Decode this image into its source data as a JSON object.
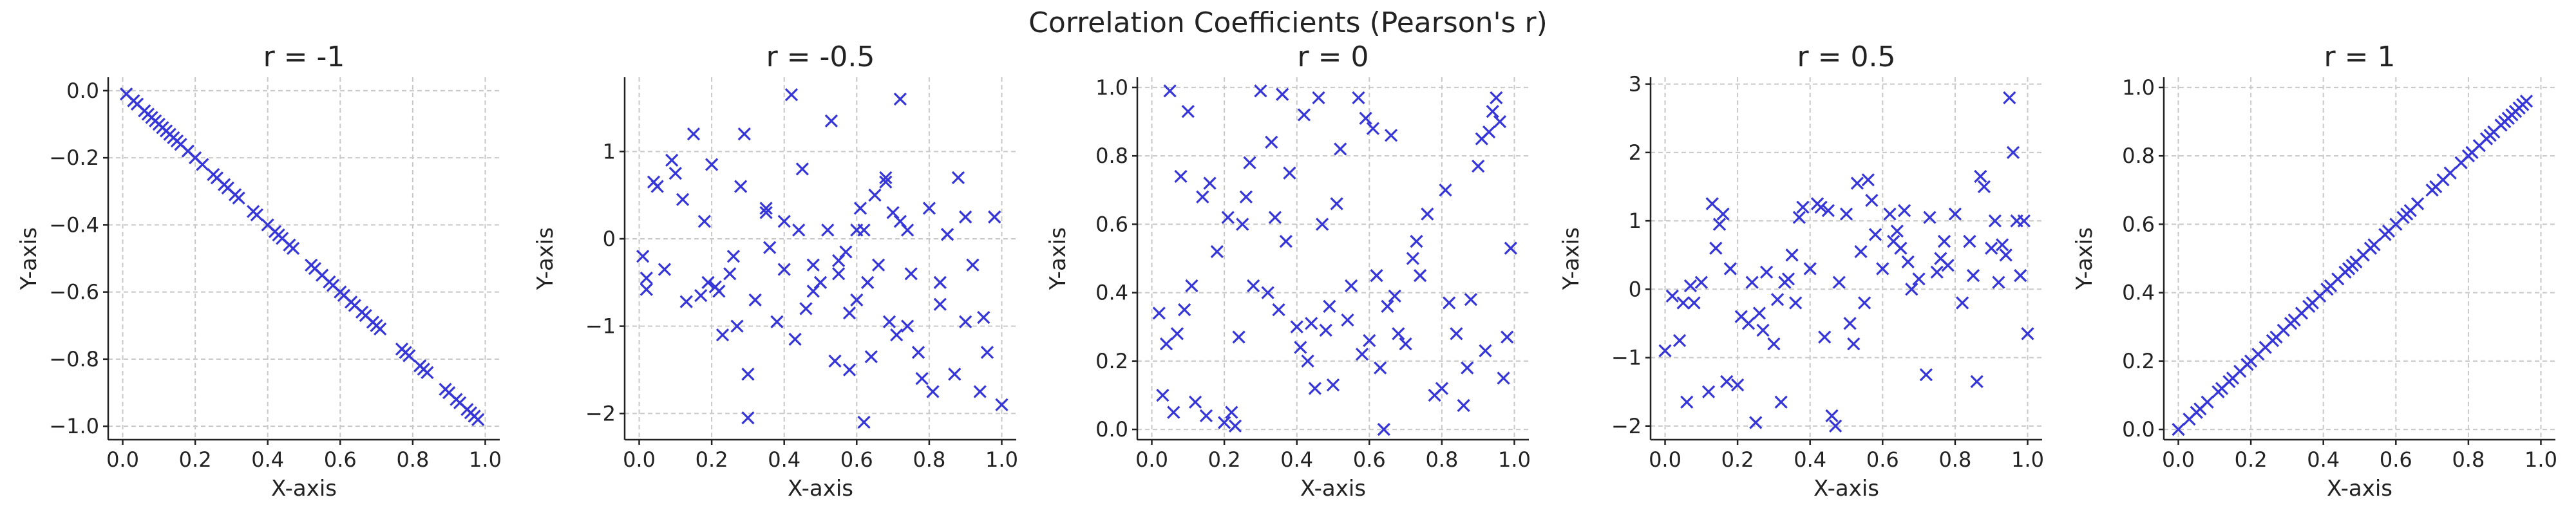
{
  "figure_title": "Correlation Coefficients (Pearson's r)",
  "colors": {
    "marker": "#3535d8",
    "grid": "#c8c8c8",
    "axis": "#222222"
  },
  "chart_data": [
    {
      "type": "scatter",
      "title": "r = -1",
      "xlabel": "X-axis",
      "ylabel": "Y-axis",
      "xlim": [
        -0.04,
        1.04
      ],
      "ylim": [
        -1.04,
        0.04
      ],
      "xticks": [
        0.0,
        0.2,
        0.4,
        0.6,
        0.8,
        1.0
      ],
      "xtick_labels": [
        "0.0",
        "0.2",
        "0.4",
        "0.6",
        "0.8",
        "1.0"
      ],
      "yticks": [
        0.0,
        -0.2,
        -0.4,
        -0.6,
        -0.8,
        -1.0
      ],
      "ytick_labels": [
        "0.0",
        "−0.2",
        "−0.4",
        "−0.6",
        "−0.8",
        "−1.0"
      ],
      "grid": true,
      "marker": "x",
      "x": [
        0.01,
        0.03,
        0.04,
        0.06,
        0.07,
        0.08,
        0.09,
        0.1,
        0.11,
        0.12,
        0.13,
        0.14,
        0.15,
        0.16,
        0.18,
        0.2,
        0.22,
        0.25,
        0.26,
        0.28,
        0.29,
        0.31,
        0.32,
        0.36,
        0.37,
        0.4,
        0.42,
        0.43,
        0.44,
        0.46,
        0.47,
        0.52,
        0.53,
        0.55,
        0.57,
        0.58,
        0.6,
        0.61,
        0.63,
        0.64,
        0.66,
        0.67,
        0.69,
        0.7,
        0.71,
        0.77,
        0.78,
        0.79,
        0.82,
        0.83,
        0.84,
        0.89,
        0.9,
        0.92,
        0.93,
        0.95,
        0.96,
        0.97,
        0.98
      ],
      "y": [
        -0.01,
        -0.03,
        -0.04,
        -0.06,
        -0.07,
        -0.08,
        -0.09,
        -0.1,
        -0.11,
        -0.12,
        -0.13,
        -0.14,
        -0.15,
        -0.16,
        -0.18,
        -0.2,
        -0.22,
        -0.25,
        -0.26,
        -0.28,
        -0.29,
        -0.31,
        -0.32,
        -0.36,
        -0.37,
        -0.4,
        -0.42,
        -0.43,
        -0.44,
        -0.46,
        -0.47,
        -0.52,
        -0.53,
        -0.55,
        -0.57,
        -0.58,
        -0.6,
        -0.61,
        -0.63,
        -0.64,
        -0.66,
        -0.67,
        -0.69,
        -0.7,
        -0.71,
        -0.77,
        -0.78,
        -0.79,
        -0.82,
        -0.83,
        -0.84,
        -0.89,
        -0.9,
        -0.92,
        -0.93,
        -0.95,
        -0.96,
        -0.97,
        -0.98
      ]
    },
    {
      "type": "scatter",
      "title": "r = -0.5",
      "xlabel": "X-axis",
      "ylabel": "Y-axis",
      "xlim": [
        -0.04,
        1.04
      ],
      "ylim": [
        -2.3,
        1.85
      ],
      "xticks": [
        0.0,
        0.2,
        0.4,
        0.6,
        0.8,
        1.0
      ],
      "xtick_labels": [
        "0.0",
        "0.2",
        "0.4",
        "0.6",
        "0.8",
        "1.0"
      ],
      "yticks": [
        1,
        0,
        -1,
        -2
      ],
      "ytick_labels": [
        "1",
        "0",
        "−1",
        "−2"
      ],
      "grid": true,
      "marker": "x",
      "x": [
        0.01,
        0.02,
        0.02,
        0.04,
        0.05,
        0.07,
        0.09,
        0.1,
        0.13,
        0.15,
        0.17,
        0.18,
        0.19,
        0.2,
        0.21,
        0.22,
        0.23,
        0.25,
        0.27,
        0.28,
        0.29,
        0.3,
        0.32,
        0.35,
        0.36,
        0.38,
        0.4,
        0.42,
        0.43,
        0.44,
        0.46,
        0.48,
        0.5,
        0.52,
        0.53,
        0.54,
        0.55,
        0.57,
        0.58,
        0.58,
        0.6,
        0.61,
        0.62,
        0.63,
        0.64,
        0.65,
        0.66,
        0.68,
        0.69,
        0.7,
        0.71,
        0.72,
        0.72,
        0.74,
        0.75,
        0.78,
        0.8,
        0.81,
        0.83,
        0.85,
        0.87,
        0.88,
        0.9,
        0.92,
        0.94,
        0.95,
        0.96,
        0.98,
        1.0,
        0.3,
        0.45,
        0.62,
        0.35,
        0.48,
        0.6,
        0.77,
        0.9,
        0.12,
        0.26,
        0.55,
        0.68,
        0.74,
        0.83,
        0.4
      ],
      "y": [
        -0.2,
        -0.58,
        -0.45,
        0.65,
        0.6,
        -0.35,
        0.9,
        0.75,
        -0.72,
        1.2,
        -0.65,
        0.2,
        -0.5,
        0.85,
        -0.55,
        -0.6,
        -1.1,
        -0.4,
        -1.0,
        0.6,
        1.2,
        -1.55,
        -0.7,
        0.35,
        -0.1,
        -0.95,
        0.2,
        1.65,
        -1.15,
        0.1,
        -0.8,
        -0.3,
        -0.5,
        0.1,
        1.35,
        -1.4,
        -0.25,
        -0.15,
        -1.5,
        -0.85,
        0.1,
        0.35,
        0.1,
        -0.5,
        -1.35,
        0.5,
        -0.3,
        0.65,
        -0.95,
        0.3,
        -1.1,
        1.6,
        0.2,
        0.1,
        -0.4,
        -1.6,
        0.35,
        -1.75,
        -0.5,
        0.05,
        -1.55,
        0.7,
        0.25,
        -0.3,
        -1.75,
        -0.9,
        -1.3,
        0.25,
        -1.9,
        -2.05,
        0.8,
        -2.1,
        0.3,
        -0.6,
        -0.7,
        -1.3,
        -0.95,
        0.45,
        -0.2,
        -0.4,
        0.7,
        -1.0,
        -0.75,
        -0.35
      ]
    },
    {
      "type": "scatter",
      "title": "r = 0",
      "xlabel": "X-axis",
      "ylabel": "Y-axis",
      "xlim": [
        -0.04,
        1.04
      ],
      "ylim": [
        -0.03,
        1.03
      ],
      "xticks": [
        0.0,
        0.2,
        0.4,
        0.6,
        0.8,
        1.0
      ],
      "xtick_labels": [
        "0.0",
        "0.2",
        "0.4",
        "0.6",
        "0.8",
        "1.0"
      ],
      "yticks": [
        0.0,
        0.2,
        0.4,
        0.6,
        0.8,
        1.0
      ],
      "ytick_labels": [
        "0.0",
        "0.2",
        "0.4",
        "0.6",
        "0.8",
        "1.0"
      ],
      "grid": true,
      "marker": "x",
      "x": [
        0.02,
        0.03,
        0.04,
        0.05,
        0.06,
        0.07,
        0.08,
        0.09,
        0.1,
        0.12,
        0.14,
        0.16,
        0.18,
        0.2,
        0.21,
        0.22,
        0.24,
        0.25,
        0.26,
        0.28,
        0.3,
        0.32,
        0.33,
        0.35,
        0.36,
        0.38,
        0.4,
        0.41,
        0.42,
        0.43,
        0.45,
        0.46,
        0.47,
        0.49,
        0.5,
        0.52,
        0.54,
        0.55,
        0.57,
        0.58,
        0.6,
        0.61,
        0.62,
        0.64,
        0.65,
        0.66,
        0.68,
        0.7,
        0.72,
        0.74,
        0.76,
        0.78,
        0.8,
        0.82,
        0.84,
        0.86,
        0.88,
        0.9,
        0.91,
        0.92,
        0.93,
        0.94,
        0.95,
        0.97,
        0.98,
        0.99,
        0.15,
        0.27,
        0.37,
        0.44,
        0.51,
        0.59,
        0.67,
        0.73,
        0.81,
        0.87,
        0.96,
        0.11,
        0.23,
        0.34,
        0.48,
        0.63
      ],
      "y": [
        0.34,
        0.1,
        0.25,
        0.99,
        0.05,
        0.28,
        0.74,
        0.35,
        0.93,
        0.08,
        0.68,
        0.72,
        0.52,
        0.02,
        0.62,
        0.05,
        0.27,
        0.6,
        0.68,
        0.42,
        0.99,
        0.4,
        0.84,
        0.35,
        0.98,
        0.75,
        0.3,
        0.24,
        0.92,
        0.2,
        0.12,
        0.97,
        0.6,
        0.36,
        0.13,
        0.82,
        0.32,
        0.42,
        0.97,
        0.22,
        0.26,
        0.88,
        0.45,
        0.0,
        0.36,
        0.86,
        0.28,
        0.25,
        0.5,
        0.45,
        0.63,
        0.1,
        0.12,
        0.37,
        0.28,
        0.07,
        0.38,
        0.77,
        0.85,
        0.23,
        0.87,
        0.93,
        0.97,
        0.15,
        0.27,
        0.53,
        0.04,
        0.78,
        0.55,
        0.31,
        0.66,
        0.91,
        0.39,
        0.55,
        0.7,
        0.18,
        0.9,
        0.42,
        0.01,
        0.62,
        0.29,
        0.18
      ]
    },
    {
      "type": "scatter",
      "title": "r = 0.5",
      "xlabel": "X-axis",
      "ylabel": "Y-axis",
      "xlim": [
        -0.04,
        1.04
      ],
      "ylim": [
        -2.2,
        3.1
      ],
      "xticks": [
        0.0,
        0.2,
        0.4,
        0.6,
        0.8,
        1.0
      ],
      "xtick_labels": [
        "0.0",
        "0.2",
        "0.4",
        "0.6",
        "0.8",
        "1.0"
      ],
      "yticks": [
        3,
        2,
        1,
        0,
        -1,
        -2
      ],
      "ytick_labels": [
        "3",
        "2",
        "1",
        "0",
        "−1",
        "−2"
      ],
      "grid": true,
      "marker": "x",
      "x": [
        0.0,
        0.02,
        0.04,
        0.05,
        0.06,
        0.07,
        0.08,
        0.1,
        0.12,
        0.13,
        0.15,
        0.16,
        0.17,
        0.18,
        0.2,
        0.21,
        0.23,
        0.24,
        0.25,
        0.27,
        0.28,
        0.3,
        0.32,
        0.33,
        0.34,
        0.35,
        0.36,
        0.37,
        0.38,
        0.4,
        0.42,
        0.44,
        0.45,
        0.46,
        0.47,
        0.48,
        0.5,
        0.51,
        0.53,
        0.54,
        0.55,
        0.56,
        0.57,
        0.58,
        0.6,
        0.62,
        0.63,
        0.65,
        0.66,
        0.67,
        0.68,
        0.7,
        0.72,
        0.73,
        0.75,
        0.77,
        0.78,
        0.8,
        0.82,
        0.84,
        0.86,
        0.87,
        0.88,
        0.9,
        0.91,
        0.92,
        0.93,
        0.94,
        0.95,
        0.96,
        0.97,
        0.98,
        0.99,
        1.0,
        0.14,
        0.26,
        0.43,
        0.52,
        0.64,
        0.76,
        0.85,
        0.31
      ],
      "y": [
        -0.9,
        -0.1,
        -0.75,
        -0.2,
        -1.65,
        0.05,
        -0.2,
        0.1,
        -1.5,
        1.25,
        0.95,
        1.1,
        -1.35,
        0.3,
        -1.4,
        -0.4,
        -0.5,
        0.1,
        -1.95,
        -0.6,
        0.25,
        -0.8,
        -1.65,
        0.1,
        0.15,
        0.5,
        -0.2,
        1.05,
        1.2,
        0.3,
        1.25,
        -0.7,
        1.15,
        -1.85,
        -2.0,
        0.1,
        1.1,
        -0.5,
        1.55,
        0.55,
        -0.2,
        1.6,
        1.3,
        0.8,
        0.3,
        1.1,
        0.7,
        0.6,
        1.15,
        0.4,
        0.0,
        0.15,
        -1.25,
        1.05,
        0.25,
        0.7,
        0.35,
        1.1,
        -0.2,
        0.7,
        -1.35,
        1.65,
        1.5,
        0.6,
        1.0,
        0.1,
        0.65,
        0.5,
        2.8,
        2.0,
        1.0,
        0.2,
        1.0,
        -0.65,
        0.6,
        -0.35,
        1.2,
        -0.8,
        0.85,
        0.45,
        0.2,
        -0.15
      ]
    },
    {
      "type": "scatter",
      "title": "r = 1",
      "xlabel": "X-axis",
      "ylabel": "Y-axis",
      "xlim": [
        -0.04,
        1.04
      ],
      "ylim": [
        -0.03,
        1.03
      ],
      "xticks": [
        0.0,
        0.2,
        0.4,
        0.6,
        0.8,
        1.0
      ],
      "xtick_labels": [
        "0.0",
        "0.2",
        "0.4",
        "0.6",
        "0.8",
        "1.0"
      ],
      "yticks": [
        0.0,
        0.2,
        0.4,
        0.6,
        0.8,
        1.0
      ],
      "ytick_labels": [
        "0.0",
        "0.2",
        "0.4",
        "0.6",
        "0.8",
        "1.0"
      ],
      "grid": true,
      "marker": "x",
      "x": [
        0.0,
        0.03,
        0.05,
        0.06,
        0.08,
        0.11,
        0.12,
        0.14,
        0.15,
        0.17,
        0.19,
        0.2,
        0.22,
        0.24,
        0.26,
        0.27,
        0.29,
        0.31,
        0.32,
        0.34,
        0.36,
        0.37,
        0.39,
        0.41,
        0.42,
        0.44,
        0.46,
        0.47,
        0.48,
        0.49,
        0.51,
        0.53,
        0.54,
        0.57,
        0.58,
        0.6,
        0.62,
        0.63,
        0.64,
        0.66,
        0.7,
        0.71,
        0.73,
        0.75,
        0.78,
        0.8,
        0.81,
        0.83,
        0.85,
        0.86,
        0.87,
        0.89,
        0.9,
        0.91,
        0.92,
        0.93,
        0.94,
        0.95,
        0.96
      ],
      "y": [
        0.0,
        0.03,
        0.05,
        0.06,
        0.08,
        0.11,
        0.12,
        0.14,
        0.15,
        0.17,
        0.19,
        0.2,
        0.22,
        0.24,
        0.26,
        0.27,
        0.29,
        0.31,
        0.32,
        0.34,
        0.36,
        0.37,
        0.39,
        0.41,
        0.42,
        0.44,
        0.46,
        0.47,
        0.48,
        0.49,
        0.51,
        0.53,
        0.54,
        0.57,
        0.58,
        0.6,
        0.62,
        0.63,
        0.64,
        0.66,
        0.7,
        0.71,
        0.73,
        0.75,
        0.78,
        0.8,
        0.81,
        0.83,
        0.85,
        0.86,
        0.87,
        0.89,
        0.9,
        0.91,
        0.92,
        0.93,
        0.94,
        0.95,
        0.96
      ]
    }
  ]
}
